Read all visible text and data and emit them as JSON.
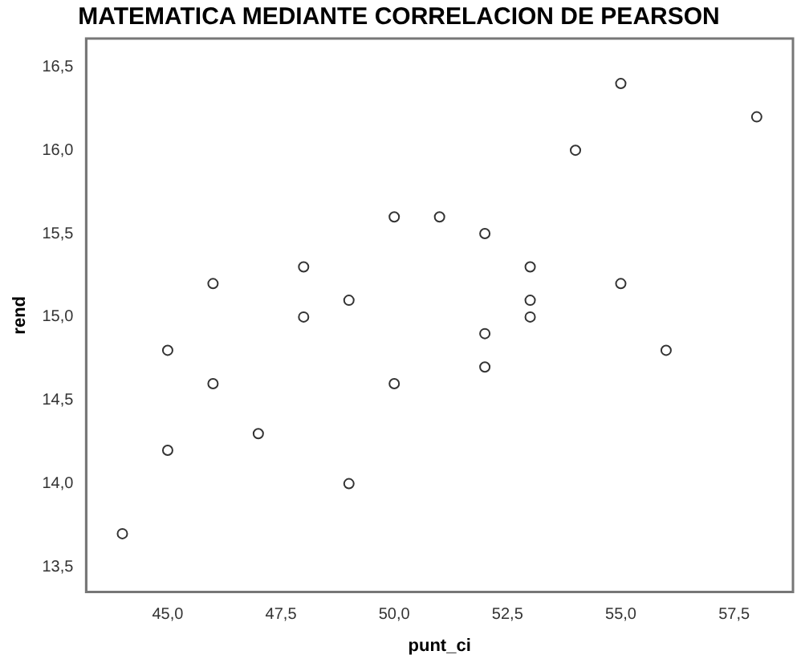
{
  "chart_data": {
    "type": "scatter",
    "title": "MATEMATICA MEDIANTE CORRELACION DE PEARSON",
    "xlabel": "punt_ci",
    "ylabel": "rend",
    "series": [
      {
        "color": "#333333",
        "marker": "circle",
        "x": [
          44,
          45,
          45,
          46,
          46,
          47,
          48,
          48,
          49,
          49,
          50,
          50,
          51,
          52,
          52,
          52,
          53,
          53,
          53,
          54,
          55,
          55,
          56,
          58
        ],
        "values": [
          13.7,
          14.8,
          14.2,
          15.2,
          14.6,
          14.3,
          15.3,
          15.0,
          15.1,
          14.0,
          15.6,
          14.6,
          15.6,
          15.5,
          14.9,
          14.7,
          15.3,
          15.1,
          15.0,
          16.0,
          16.4,
          15.2,
          14.8,
          16.2
        ]
      }
    ],
    "xlim": [
      43.2,
      58.8
    ],
    "ylim": [
      13.35,
      16.67
    ],
    "xticks": [
      {
        "value": 45,
        "label": "45,0"
      },
      {
        "value": 47.5,
        "label": "47,5"
      },
      {
        "value": 50,
        "label": "50,0"
      },
      {
        "value": 52.5,
        "label": "52,5"
      },
      {
        "value": 55,
        "label": "55,0"
      },
      {
        "value": 57.5,
        "label": "57,5"
      }
    ],
    "yticks": [
      {
        "value": 13.5,
        "label": "13,5"
      },
      {
        "value": 14,
        "label": "14,0"
      },
      {
        "value": 14.5,
        "label": "14,5"
      },
      {
        "value": 15,
        "label": "15,0"
      },
      {
        "value": 15.5,
        "label": "15,5"
      },
      {
        "value": 16,
        "label": "16,0"
      },
      {
        "value": 16.5,
        "label": "16,5"
      }
    ],
    "grid": false,
    "legend": false
  }
}
